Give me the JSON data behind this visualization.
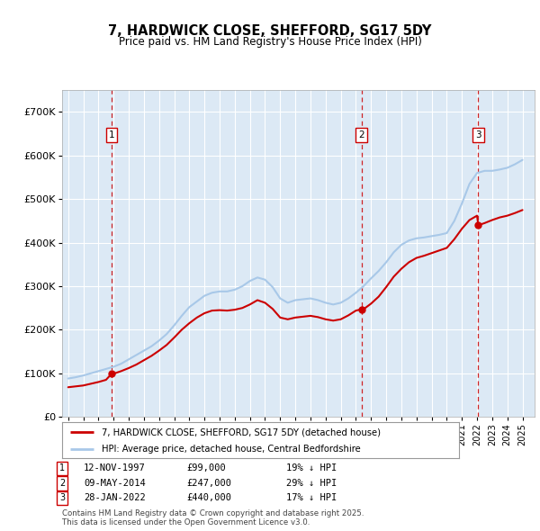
{
  "title": "7, HARDWICK CLOSE, SHEFFORD, SG17 5DY",
  "subtitle": "Price paid vs. HM Land Registry's House Price Index (HPI)",
  "sale_annotations": [
    {
      "label": "1",
      "date": "12-NOV-1997",
      "price": "£99,000",
      "hpi": "19% ↓ HPI"
    },
    {
      "label": "2",
      "date": "09-MAY-2014",
      "price": "£247,000",
      "hpi": "29% ↓ HPI"
    },
    {
      "label": "3",
      "date": "28-JAN-2022",
      "price": "£440,000",
      "hpi": "17% ↓ HPI"
    }
  ],
  "hpi_color": "#a8c8e8",
  "sale_color": "#cc0000",
  "plot_bg_color": "#dce9f5",
  "grid_color": "#ffffff",
  "ylim": [
    0,
    750000
  ],
  "yticks": [
    0,
    100000,
    200000,
    300000,
    400000,
    500000,
    600000,
    700000
  ],
  "ytick_labels": [
    "£0",
    "£100K",
    "£200K",
    "£300K",
    "£400K",
    "£500K",
    "£600K",
    "£700K"
  ],
  "legend_text_red": "7, HARDWICK CLOSE, SHEFFORD, SG17 5DY (detached house)",
  "legend_text_blue": "HPI: Average price, detached house, Central Bedfordshire",
  "footer": "Contains HM Land Registry data © Crown copyright and database right 2025.\nThis data is licensed under the Open Government Licence v3.0.",
  "sale_years": [
    1997.87,
    2014.36,
    2022.08
  ],
  "sale_prices": [
    99000,
    247000,
    440000
  ],
  "hpi_years": [
    1995,
    1995.5,
    1996,
    1996.5,
    1997,
    1997.5,
    1998,
    1998.5,
    1999,
    1999.5,
    2000,
    2000.5,
    2001,
    2001.5,
    2002,
    2002.5,
    2003,
    2003.5,
    2004,
    2004.5,
    2005,
    2005.5,
    2006,
    2006.5,
    2007,
    2007.5,
    2008,
    2008.5,
    2009,
    2009.5,
    2010,
    2010.5,
    2011,
    2011.5,
    2012,
    2012.5,
    2013,
    2013.5,
    2014,
    2014.5,
    2015,
    2015.5,
    2016,
    2016.5,
    2017,
    2017.5,
    2018,
    2018.5,
    2019,
    2019.5,
    2020,
    2020.5,
    2021,
    2021.5,
    2022,
    2022.5,
    2023,
    2023.5,
    2024,
    2024.5,
    2025
  ],
  "hpi_values": [
    88000,
    91000,
    95000,
    100000,
    105000,
    110000,
    115000,
    122000,
    132000,
    142000,
    152000,
    162000,
    175000,
    190000,
    210000,
    232000,
    252000,
    265000,
    278000,
    285000,
    288000,
    288000,
    292000,
    300000,
    312000,
    320000,
    315000,
    298000,
    272000,
    262000,
    268000,
    270000,
    272000,
    268000,
    262000,
    258000,
    262000,
    272000,
    285000,
    300000,
    318000,
    335000,
    355000,
    378000,
    395000,
    405000,
    410000,
    412000,
    415000,
    418000,
    422000,
    450000,
    490000,
    535000,
    560000,
    565000,
    565000,
    568000,
    572000,
    580000,
    590000
  ],
  "red_years": [
    1995,
    1995.5,
    1996,
    1996.5,
    1997,
    1997.5,
    1997.87,
    1998,
    1998.5,
    1999,
    1999.5,
    2000,
    2000.5,
    2001,
    2001.5,
    2002,
    2002.5,
    2003,
    2003.5,
    2004,
    2004.5,
    2005,
    2005.5,
    2006,
    2006.5,
    2007,
    2007.5,
    2008,
    2008.5,
    2009,
    2009.5,
    2010,
    2010.5,
    2011,
    2011.5,
    2012,
    2012.5,
    2013,
    2013.5,
    2014,
    2014.36,
    2014.5,
    2015,
    2015.5,
    2016,
    2016.5,
    2017,
    2017.5,
    2018,
    2018.5,
    2019,
    2019.5,
    2020,
    2020.5,
    2021,
    2021.5,
    2022,
    2022.08,
    2022.5,
    2023,
    2023.5,
    2024,
    2024.5,
    2025
  ],
  "red_values": [
    68000,
    70000,
    72000,
    76000,
    80000,
    85000,
    99000,
    99000,
    105000,
    112000,
    120000,
    130000,
    140000,
    152000,
    165000,
    182000,
    200000,
    215000,
    228000,
    238000,
    244000,
    245000,
    244000,
    246000,
    250000,
    258000,
    268000,
    262000,
    248000,
    228000,
    224000,
    228000,
    230000,
    232000,
    229000,
    224000,
    221000,
    224000,
    233000,
    244000,
    247000,
    247000,
    260000,
    276000,
    298000,
    322000,
    340000,
    355000,
    365000,
    370000,
    376000,
    382000,
    388000,
    408000,
    432000,
    452000,
    462000,
    440000,
    445000,
    452000,
    458000,
    462000,
    468000,
    475000
  ]
}
